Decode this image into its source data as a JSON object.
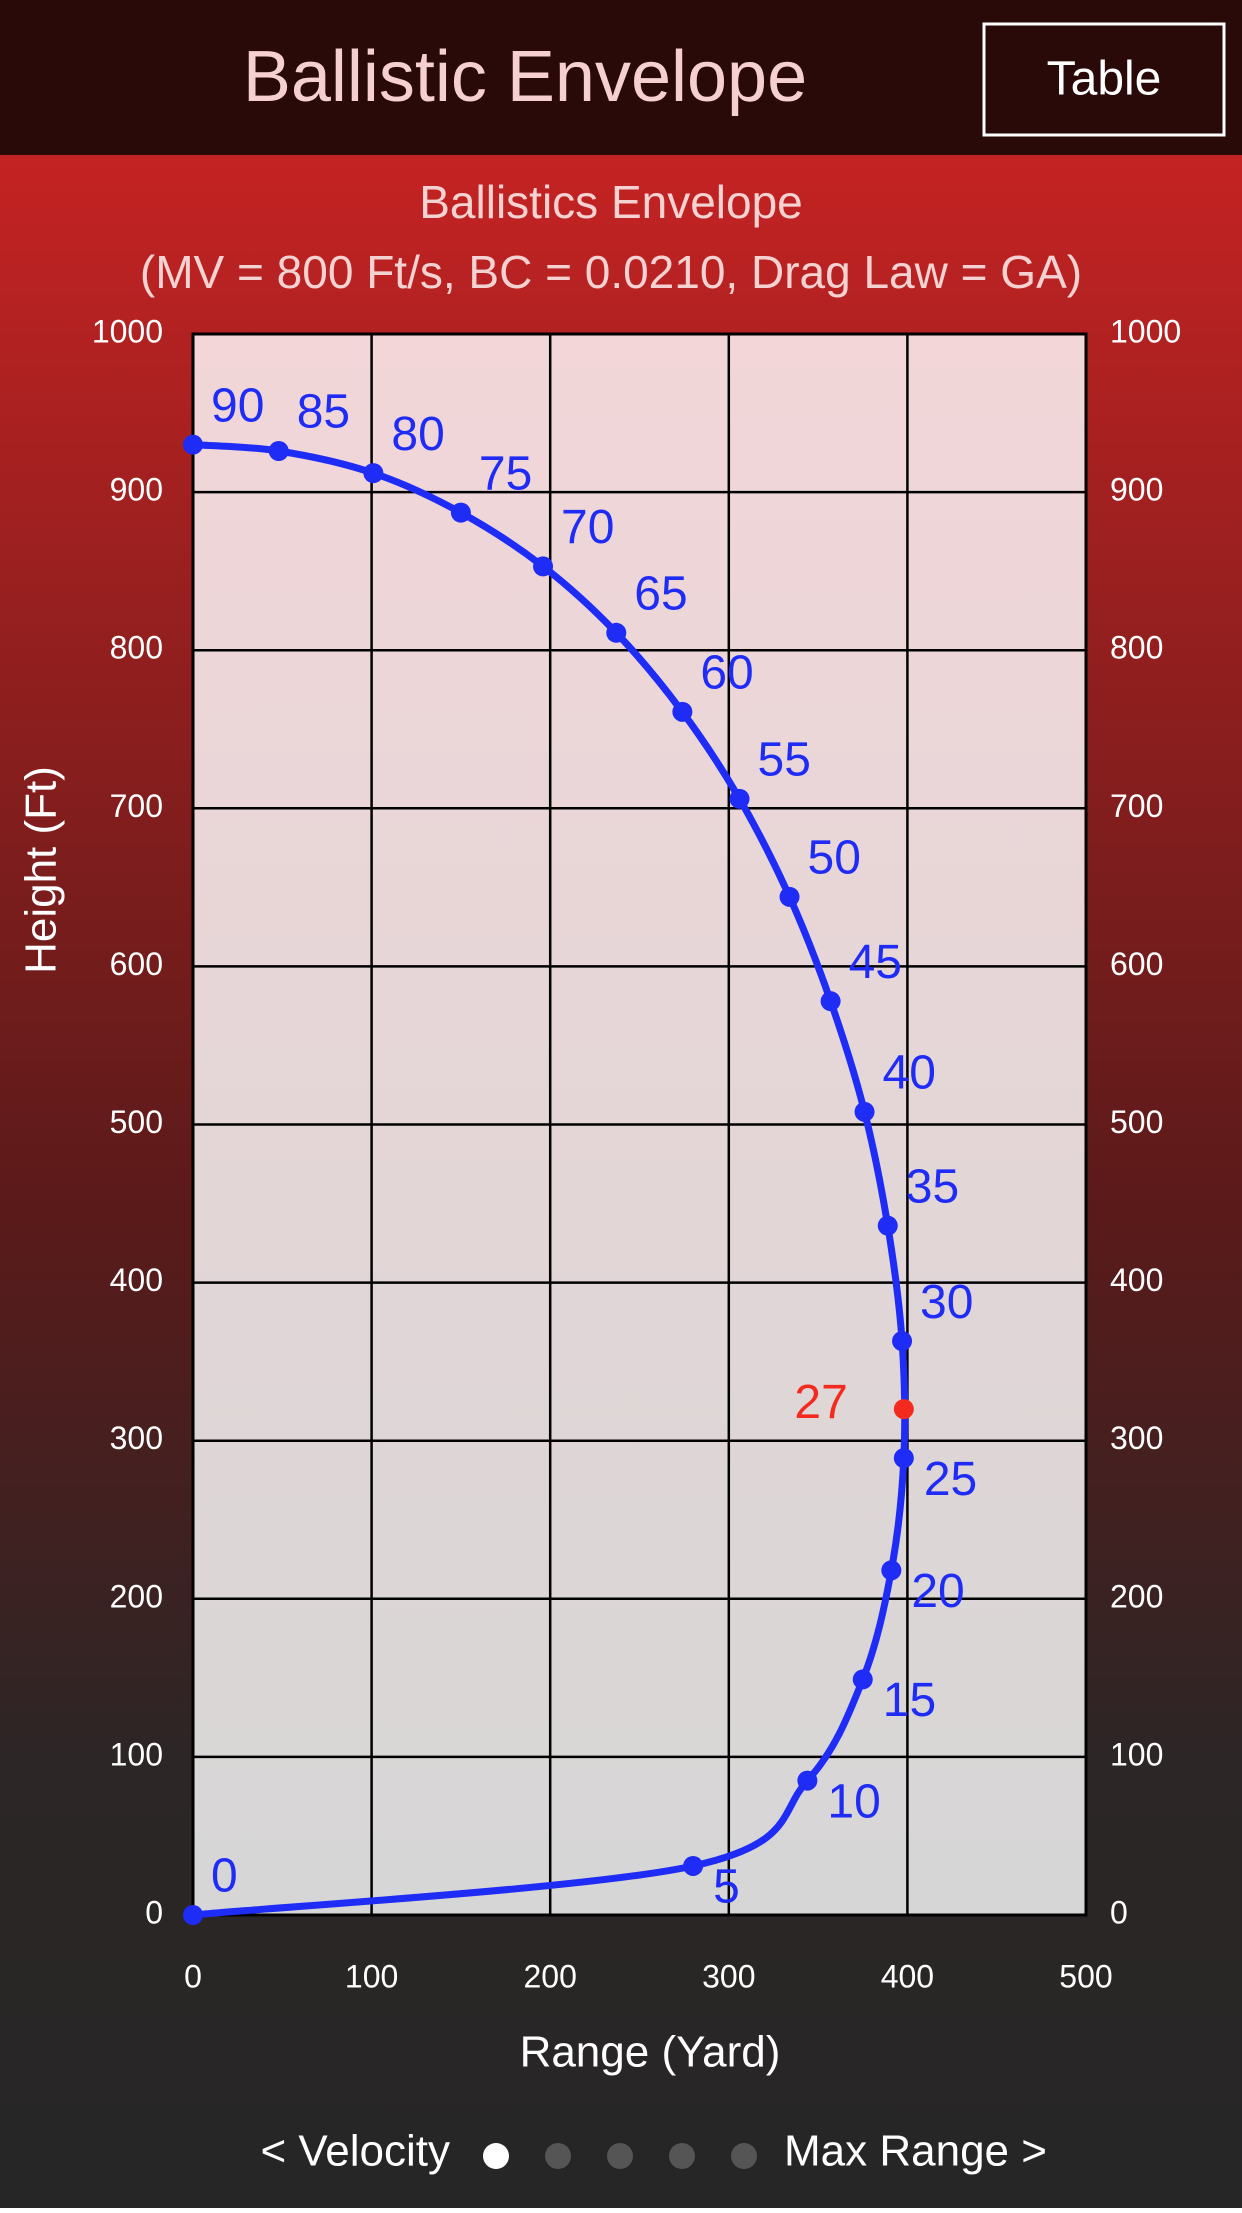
{
  "header": {
    "title": "Ballistic Envelope",
    "button": "Table"
  },
  "chart_data": {
    "type": "line",
    "title": "Ballistics Envelope",
    "subtitle": "(MV = 800 Ft/s, BC = 0.0210, Drag Law = GA)",
    "x_label": "Range (Yard)",
    "y_label": "Height (Ft)",
    "xlim": [
      0,
      500
    ],
    "xticks": [
      0,
      100,
      200,
      300,
      400,
      500
    ],
    "ylim": [
      0,
      1000
    ],
    "yticks": [
      0,
      100,
      200,
      300,
      400,
      500,
      600,
      700,
      800,
      900,
      1000
    ],
    "grid": true,
    "series": [
      {
        "color": "#1f2cf5",
        "x": [
          0,
          280,
          344,
          375,
          391,
          398,
          397,
          389,
          376,
          357,
          334,
          306,
          274,
          237,
          196,
          150,
          101,
          48,
          0
        ],
        "values": [
          0,
          31,
          85,
          149,
          218,
          289,
          363,
          436,
          508,
          578,
          644,
          706,
          761,
          811,
          853,
          887,
          912,
          926,
          930
        ],
        "labels": [
          0,
          5,
          10,
          15,
          20,
          25,
          30,
          35,
          40,
          45,
          50,
          55,
          60,
          65,
          70,
          75,
          80,
          85,
          90
        ]
      },
      {
        "color": "#f52a1f",
        "x": [
          398
        ],
        "values": [
          320
        ],
        "labels": [
          27
        ]
      }
    ]
  },
  "pager": {
    "left": "< Velocity",
    "right": "Max Range >"
  }
}
